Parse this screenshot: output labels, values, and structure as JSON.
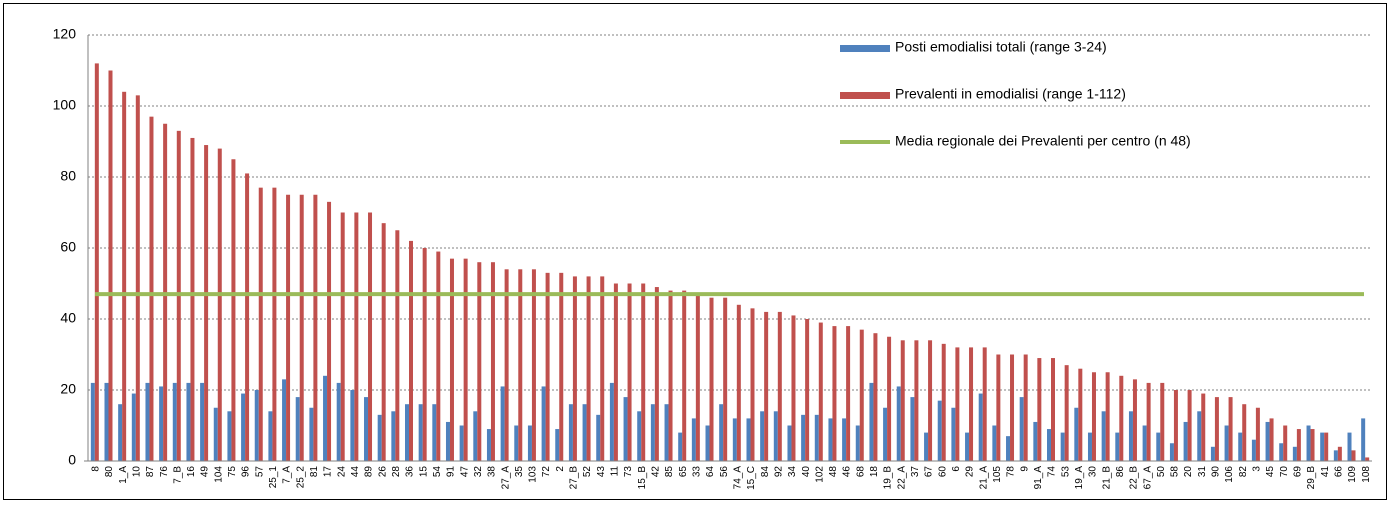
{
  "chart_data": {
    "type": "bar",
    "categories": [
      "8",
      "80",
      "1_A",
      "10",
      "87",
      "76",
      "7_B",
      "16",
      "49",
      "104",
      "75",
      "96",
      "57",
      "25_1",
      "7_A",
      "25_2",
      "81",
      "17",
      "24",
      "44",
      "89",
      "26",
      "28",
      "36",
      "15",
      "54",
      "91",
      "47",
      "32",
      "38",
      "27_A",
      "35",
      "103",
      "72",
      "2",
      "27_B",
      "52",
      "43",
      "11",
      "73",
      "15_B",
      "42",
      "85",
      "65",
      "33",
      "64",
      "56",
      "74_A",
      "15_C",
      "84",
      "92",
      "34",
      "40",
      "102",
      "48",
      "46",
      "68",
      "18",
      "19_B",
      "22_A",
      "37",
      "67",
      "60",
      "6",
      "29",
      "21_A",
      "105",
      "78",
      "9",
      "91_A",
      "74",
      "53",
      "19_A",
      "30",
      "21_B",
      "86",
      "22_B",
      "67_A",
      "50",
      "58",
      "20",
      "31",
      "90",
      "106",
      "82",
      "3",
      "45",
      "70",
      "69",
      "29_B",
      "41",
      "66",
      "109",
      "108"
    ],
    "series": [
      {
        "name": "Posti emodialisi totali (range 3-24)",
        "color": "#4f81bd",
        "values": [
          22,
          22,
          16,
          19,
          22,
          21,
          22,
          22,
          22,
          15,
          14,
          19,
          20,
          14,
          23,
          18,
          15,
          24,
          22,
          20,
          18,
          13,
          14,
          16,
          16,
          16,
          11,
          10,
          14,
          9,
          21,
          10,
          10,
          21,
          9,
          16,
          16,
          13,
          22,
          18,
          14,
          16,
          16,
          8,
          12,
          10,
          16,
          12,
          12,
          14,
          14,
          10,
          13,
          13,
          12,
          12,
          10,
          22,
          15,
          21,
          18,
          8,
          17,
          15,
          8,
          19,
          10,
          7,
          18,
          11,
          9,
          8,
          15,
          8,
          14,
          8,
          14,
          10,
          8,
          5,
          11,
          14,
          4,
          10,
          8,
          6,
          11,
          5,
          4,
          10,
          8,
          3,
          8,
          12
        ]
      },
      {
        "name": "Prevalenti in emodialisi (range 1-112)",
        "color": "#c0504d",
        "values": [
          112,
          110,
          104,
          103,
          97,
          95,
          93,
          91,
          89,
          88,
          85,
          81,
          77,
          77,
          75,
          75,
          75,
          73,
          70,
          70,
          70,
          67,
          65,
          62,
          60,
          59,
          57,
          57,
          56,
          56,
          54,
          54,
          54,
          53,
          53,
          52,
          52,
          52,
          50,
          50,
          50,
          49,
          48,
          48,
          47,
          46,
          46,
          44,
          43,
          42,
          42,
          41,
          40,
          39,
          38,
          38,
          37,
          36,
          35,
          34,
          34,
          34,
          33,
          32,
          32,
          32,
          30,
          30,
          30,
          29,
          29,
          27,
          26,
          25,
          25,
          24,
          23,
          22,
          22,
          20,
          20,
          19,
          18,
          18,
          16,
          15,
          12,
          10,
          9,
          9,
          8,
          4,
          3,
          1
        ]
      }
    ],
    "reference_line": {
      "name": "Media regionale dei Prevalenti per centro (n 48)",
      "value": 47,
      "color": "#9bbb59"
    },
    "ylim": [
      0,
      120
    ],
    "yticks": [
      0,
      20,
      40,
      60,
      80,
      100,
      120
    ],
    "grid": true
  }
}
